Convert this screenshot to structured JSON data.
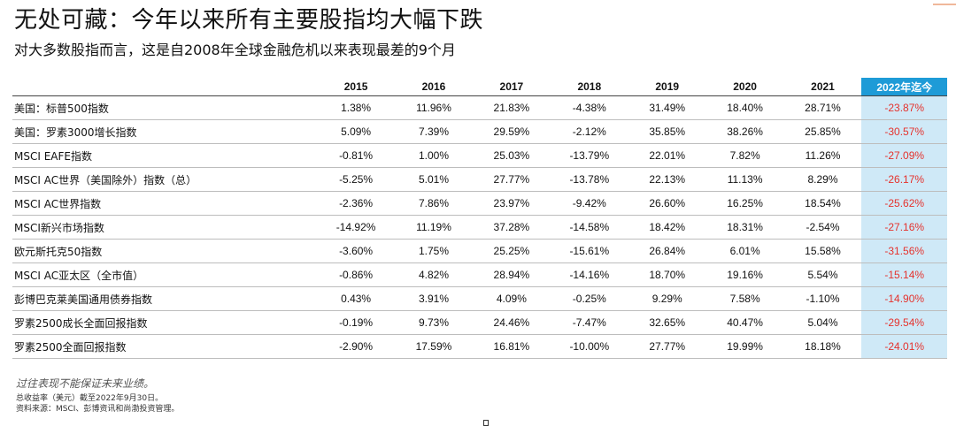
{
  "header": {
    "title": "无处可藏：今年以来所有主要股指均大幅下跌",
    "subtitle": "对大多数股指而言，这是自2008年全球金融危机以来表现最差的9个月"
  },
  "table": {
    "columns": [
      "2015",
      "2016",
      "2017",
      "2018",
      "2019",
      "2020",
      "2021",
      "2022年迄今"
    ],
    "rows": [
      {
        "name": "美国：标普500指数",
        "values": [
          "1.38%",
          "11.96%",
          "21.83%",
          "-4.38%",
          "31.49%",
          "18.40%",
          "28.71%",
          "-23.87%"
        ]
      },
      {
        "name": "美国：罗素3000增长指数",
        "values": [
          "5.09%",
          "7.39%",
          "29.59%",
          "-2.12%",
          "35.85%",
          "38.26%",
          "25.85%",
          "-30.57%"
        ]
      },
      {
        "name": "MSCI EAFE指数",
        "values": [
          "-0.81%",
          "1.00%",
          "25.03%",
          "-13.79%",
          "22.01%",
          "7.82%",
          "11.26%",
          "-27.09%"
        ]
      },
      {
        "name": "MSCI AC世界（美国除外）指数（总）",
        "values": [
          "-5.25%",
          "5.01%",
          "27.77%",
          "-13.78%",
          "22.13%",
          "11.13%",
          "8.29%",
          "-26.17%"
        ]
      },
      {
        "name": "MSCI AC世界指数",
        "values": [
          "-2.36%",
          "7.86%",
          "23.97%",
          "-9.42%",
          "26.60%",
          "16.25%",
          "18.54%",
          "-25.62%"
        ]
      },
      {
        "name": "MSCI新兴市场指数",
        "values": [
          "-14.92%",
          "11.19%",
          "37.28%",
          "-14.58%",
          "18.42%",
          "18.31%",
          "-2.54%",
          "-27.16%"
        ]
      },
      {
        "name": "欧元斯托克50指数",
        "values": [
          "-3.60%",
          "1.75%",
          "25.25%",
          "-15.61%",
          "26.84%",
          "6.01%",
          "15.58%",
          "-31.56%"
        ]
      },
      {
        "name": "MSCI AC亚太区（全市值）",
        "values": [
          "-0.86%",
          "4.82%",
          "28.94%",
          "-14.16%",
          "18.70%",
          "19.16%",
          "5.54%",
          "-15.14%"
        ]
      },
      {
        "name": "彭博巴克莱美国通用债券指数",
        "values": [
          "0.43%",
          "3.91%",
          "4.09%",
          "-0.25%",
          "9.29%",
          "7.58%",
          "-1.10%",
          "-14.90%"
        ]
      },
      {
        "name": "罗素2500成长全面回报指数",
        "values": [
          "-0.19%",
          "9.73%",
          "24.46%",
          "-7.47%",
          "32.65%",
          "40.47%",
          "5.04%",
          "-29.54%"
        ]
      },
      {
        "name": "罗素2500全面回报指数",
        "values": [
          "-2.90%",
          "17.59%",
          "16.81%",
          "-10.00%",
          "27.77%",
          "19.99%",
          "18.18%",
          "-24.01%"
        ]
      }
    ]
  },
  "footer": {
    "disclaimer": "过往表现不能保证未来业绩。",
    "note1": "总收益率（美元）截至2022年9月30日。",
    "note2": "资料来源：MSCI、彭博资讯和尚渤投资管理。"
  },
  "colors": {
    "highlight_header": "#1e9bd7",
    "highlight_cell": "#cfe9f7",
    "negative_ytd": "#e5322d"
  }
}
